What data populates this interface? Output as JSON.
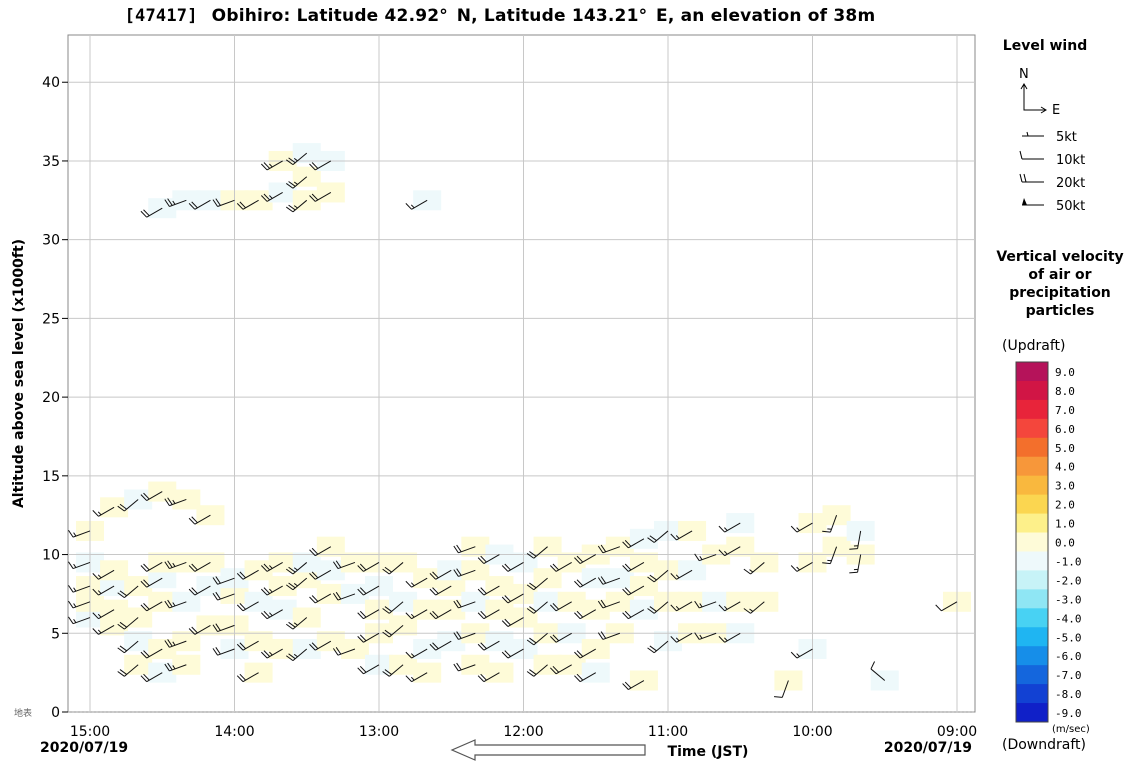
{
  "title": {
    "station_id": "[47417]",
    "text": "Obihiro: Latitude 42.92° N, Latitude 143.21° E, an elevation of 38m"
  },
  "chart_data": {
    "type": "wind-profile",
    "ylabel": "Altitude above sea level (x1000ft)",
    "xlabel": "Time (JST)",
    "ylim": [
      0,
      43
    ],
    "y_ticks": [
      0,
      5,
      10,
      15,
      20,
      25,
      30,
      35,
      40
    ],
    "ground_label": "地表",
    "x_ticks": [
      "15:00",
      "14:00",
      "13:00",
      "12:00",
      "11:00",
      "10:00",
      "09:00"
    ],
    "x_start_date": "2020/07/19",
    "x_end_date": "2020/07/19",
    "x_direction": "time runs right-to-left (older to the right)",
    "grid": true,
    "wind_barbs": [
      {
        "time": "15:00",
        "alt": [
          6.0,
          7.0,
          8.0,
          9.5,
          11.5
        ],
        "dir": 250,
        "kt": 15
      },
      {
        "time": "14:50",
        "alt": [
          5.5,
          6.5,
          8.0,
          9.0,
          13.0
        ],
        "dir": 240,
        "kt": 15
      },
      {
        "time": "14:40",
        "alt": [
          3.0,
          4.5,
          6.0,
          8.0,
          13.5
        ],
        "dir": 230,
        "kt": 20
      },
      {
        "time": "14:30",
        "alt": [
          2.5,
          4.0,
          7.0,
          8.5,
          9.5,
          14.0,
          32.0
        ],
        "dir": 240,
        "kt": 20
      },
      {
        "time": "14:20",
        "alt": [
          3.0,
          4.5,
          7.0,
          9.5,
          13.5,
          32.5
        ],
        "dir": 250,
        "kt": 25
      },
      {
        "time": "14:10",
        "alt": [
          5.5,
          8.0,
          9.5,
          12.5,
          32.5
        ],
        "dir": 240,
        "kt": 20
      },
      {
        "time": "14:00",
        "alt": [
          4.0,
          5.5,
          7.5,
          8.5,
          32.5
        ],
        "dir": 250,
        "kt": 20
      },
      {
        "time": "13:50",
        "alt": [
          2.5,
          4.5,
          7.0,
          9.0,
          32.5
        ],
        "dir": 240,
        "kt": 20
      },
      {
        "time": "13:40",
        "alt": [
          4.0,
          6.5,
          8.0,
          9.5,
          33.0,
          35.0
        ],
        "dir": 240,
        "kt": 25
      },
      {
        "time": "13:30",
        "alt": [
          4.0,
          6.0,
          8.5,
          9.5,
          32.5,
          34.0,
          35.5
        ],
        "dir": 230,
        "kt": 25
      },
      {
        "time": "13:20",
        "alt": [
          4.5,
          7.5,
          9.0,
          10.5,
          33.0,
          35.0
        ],
        "dir": 240,
        "kt": 20
      },
      {
        "time": "13:10",
        "alt": [
          4.0,
          7.5,
          9.5
        ],
        "dir": 250,
        "kt": 20
      },
      {
        "time": "13:00",
        "alt": [
          3.0,
          5.0,
          6.5,
          8.0,
          9.5
        ],
        "dir": 240,
        "kt": 20
      },
      {
        "time": "12:50",
        "alt": [
          3.0,
          5.5,
          7.0,
          9.5
        ],
        "dir": 230,
        "kt": 20
      },
      {
        "time": "12:40",
        "alt": [
          2.5,
          4.0,
          6.5,
          8.5,
          32.5
        ],
        "dir": 240,
        "kt": 15
      },
      {
        "time": "12:30",
        "alt": [
          4.5,
          6.5,
          8.0,
          9.0
        ],
        "dir": 240,
        "kt": 20
      },
      {
        "time": "12:20",
        "alt": [
          3.0,
          5.0,
          7.0,
          9.0,
          10.5
        ],
        "dir": 250,
        "kt": 20
      },
      {
        "time": "12:10",
        "alt": [
          2.5,
          4.5,
          6.5,
          8.0,
          10.0
        ],
        "dir": 240,
        "kt": 20
      },
      {
        "time": "12:00",
        "alt": [
          4.0,
          6.0,
          7.5,
          9.5
        ],
        "dir": 240,
        "kt": 20
      },
      {
        "time": "11:50",
        "alt": [
          3.0,
          5.0,
          7.0,
          8.5,
          10.5
        ],
        "dir": 230,
        "kt": 20
      },
      {
        "time": "11:40",
        "alt": [
          3.0,
          5.0,
          7.0,
          9.5
        ],
        "dir": 240,
        "kt": 20
      },
      {
        "time": "11:30",
        "alt": [
          2.5,
          4.0,
          6.5,
          8.5,
          10.0
        ],
        "dir": 240,
        "kt": 20
      },
      {
        "time": "11:20",
        "alt": [
          5.0,
          7.0,
          8.5,
          10.5
        ],
        "dir": 250,
        "kt": 20
      },
      {
        "time": "11:10",
        "alt": [
          2.0,
          6.5,
          8.0,
          9.5,
          11.0
        ],
        "dir": 240,
        "kt": 20
      },
      {
        "time": "11:00",
        "alt": [
          4.5,
          7.0,
          9.0,
          11.5
        ],
        "dir": 230,
        "kt": 20
      },
      {
        "time": "10:50",
        "alt": [
          5.0,
          7.0,
          9.0,
          11.5
        ],
        "dir": 240,
        "kt": 15
      },
      {
        "time": "10:40",
        "alt": [
          5.0,
          7.0,
          10.0
        ],
        "dir": 250,
        "kt": 15
      },
      {
        "time": "10:30",
        "alt": [
          5.0,
          7.0,
          10.5,
          12.0
        ],
        "dir": 240,
        "kt": 15
      },
      {
        "time": "10:20",
        "alt": [
          7.0,
          9.5
        ],
        "dir": 230,
        "kt": 15
      },
      {
        "time": "10:10",
        "alt": [
          2.0
        ],
        "dir": 200,
        "kt": 10
      },
      {
        "time": "10:00",
        "alt": [
          4.0,
          9.5,
          12.0
        ],
        "dir": 240,
        "kt": 15
      },
      {
        "time": "09:50",
        "alt": [
          10.5,
          12.5
        ],
        "dir": 200,
        "kt": 15
      },
      {
        "time": "09:40",
        "alt": [
          10.0,
          11.5
        ],
        "dir": 190,
        "kt": 15
      },
      {
        "time": "09:30",
        "alt": [
          2.0
        ],
        "dir": 310,
        "kt": 10
      },
      {
        "time": "09:00",
        "alt": [
          7.0
        ],
        "dir": 240,
        "kt": 10
      }
    ]
  },
  "legend_wind": {
    "title": "Level wind",
    "north": "N",
    "east": "E",
    "items": [
      "5kt",
      "10kt",
      "20kt",
      "50kt"
    ]
  },
  "legend_velocity": {
    "title_lines": [
      "Vertical velocity",
      "of air or",
      "precipitation",
      "particles"
    ],
    "updraft": "(Updraft)",
    "downdraft": "(Downdraft)",
    "unit": "(m/sec)",
    "levels": [
      "9.0",
      "8.0",
      "7.0",
      "6.0",
      "5.0",
      "4.0",
      "3.0",
      "2.0",
      "1.0",
      "0.0",
      "-1.0",
      "-2.0",
      "-3.0",
      "-4.0",
      "-5.0",
      "-6.0",
      "-7.0",
      "-8.0",
      "-9.0"
    ],
    "colors": [
      "#b5135a",
      "#d11545",
      "#e8243a",
      "#f4463c",
      "#f36f2c",
      "#f7973a",
      "#f9b83e",
      "#fbd650",
      "#fdf08a",
      "#fefbd8",
      "#eef9fb",
      "#c7f3f7",
      "#8fe6f4",
      "#48d2f3",
      "#1fb5f2",
      "#168ee9",
      "#1466dd",
      "#1241d3",
      "#1020c8"
    ]
  }
}
